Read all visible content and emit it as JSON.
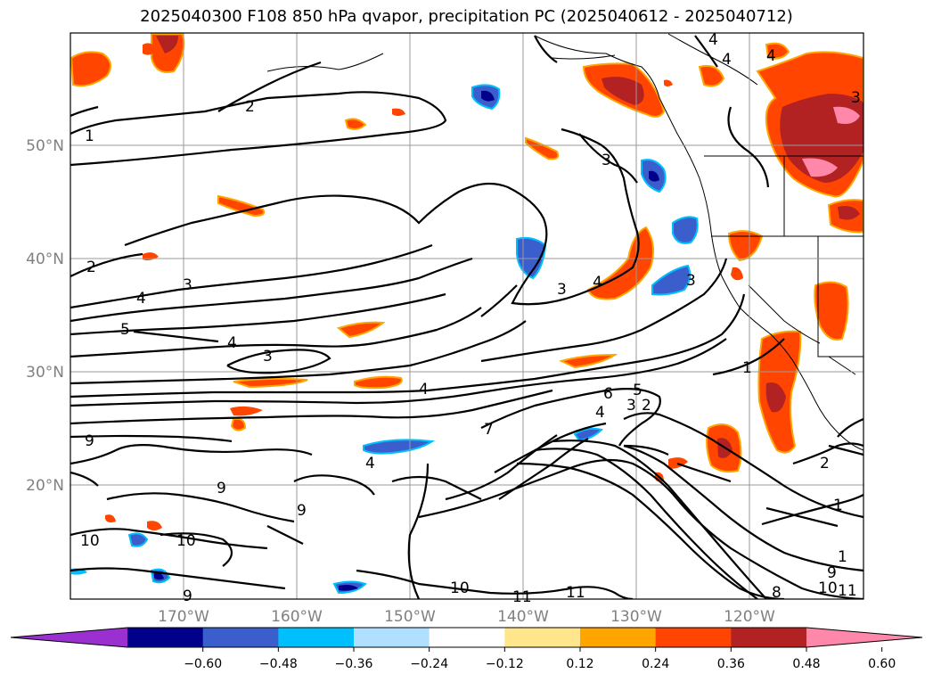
{
  "title": "2025040300 F108 850 hPa qvapor, precipitation PC (2025040612 - 2025040712)",
  "lat_labels": [
    "50°N",
    "40°N",
    "30°N",
    "20°N"
  ],
  "lon_labels": [
    "170°W",
    "160°W",
    "150°W",
    "140°W",
    "130°W",
    "120°W"
  ],
  "colorbar": {
    "ticks": [
      "−0.60",
      "−0.48",
      "−0.36",
      "−0.24",
      "−0.12",
      "0.12",
      "0.24",
      "0.36",
      "0.48",
      "0.60"
    ],
    "colors": [
      "#9b30d0",
      "#00008b",
      "#3a5fcd",
      "#00bfff",
      "#b0e0ff",
      "#ffffff",
      "#ffe58c",
      "#ffa500",
      "#ff4500",
      "#b22222",
      "#ff88aa"
    ]
  },
  "contour_labels": [
    "1",
    "2",
    "2",
    "3",
    "3",
    "3",
    "4",
    "4",
    "4",
    "4",
    "5",
    "4",
    "3",
    "3",
    "4",
    "6",
    "5",
    "4",
    "3",
    "2",
    "7",
    "9",
    "9",
    "9",
    "9",
    "10",
    "10",
    "10",
    "11",
    "11",
    "8",
    "1",
    "2",
    "1",
    "1",
    "9",
    "10",
    "11",
    "4",
    "4",
    "3"
  ]
}
